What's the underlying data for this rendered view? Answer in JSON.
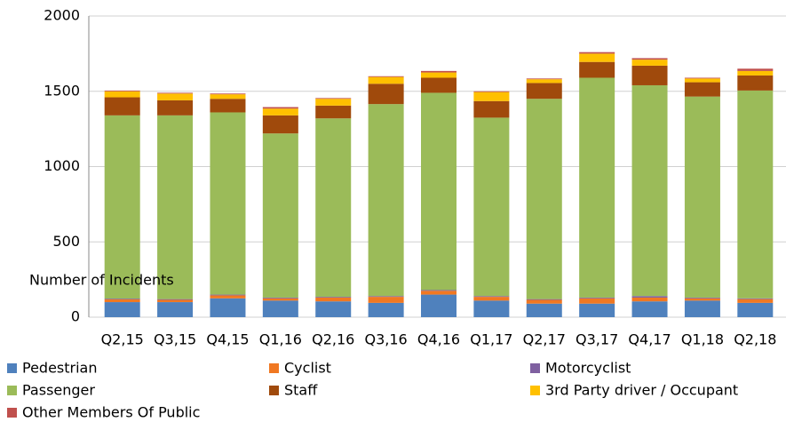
{
  "chart_data": {
    "type": "stacked_bar",
    "y_label": "Number of Incidents",
    "categories": [
      "Q2,15",
      "Q3,15",
      "Q4,15",
      "Q1,16",
      "Q2,16",
      "Q3,16",
      "Q4,16",
      "Q1,17",
      "Q2,17",
      "Q3,17",
      "Q4,17",
      "Q1,18",
      "Q2,18"
    ],
    "series": [
      {
        "name": "Pedestrian",
        "color": "#4f81bd",
        "values": [
          100,
          100,
          125,
          110,
          105,
          95,
          150,
          110,
          90,
          90,
          105,
          110,
          95
        ]
      },
      {
        "name": "Cyclist",
        "color": "#f07822",
        "values": [
          18,
          15,
          20,
          15,
          25,
          40,
          25,
          25,
          25,
          35,
          25,
          15,
          25
        ]
      },
      {
        "name": "Motorcyclist",
        "color": "#7f60a0",
        "values": [
          5,
          5,
          5,
          5,
          5,
          5,
          5,
          5,
          5,
          5,
          10,
          5,
          5
        ]
      },
      {
        "name": "Passenger",
        "color": "#9bbb59",
        "values": [
          1217,
          1220,
          1210,
          1090,
          1185,
          1275,
          1310,
          1185,
          1330,
          1460,
          1400,
          1335,
          1380
        ]
      },
      {
        "name": "Staff",
        "color": "#a04a0c",
        "values": [
          120,
          100,
          90,
          120,
          85,
          135,
          100,
          110,
          105,
          105,
          130,
          95,
          100
        ]
      },
      {
        "name": "3rd Party driver / Occupant",
        "color": "#ffc000",
        "values": [
          40,
          45,
          30,
          45,
          45,
          45,
          35,
          60,
          25,
          55,
          40,
          25,
          30
        ]
      },
      {
        "name": "Other Members Of Public",
        "color": "#c0504d",
        "values": [
          5,
          5,
          5,
          10,
          5,
          5,
          10,
          5,
          5,
          10,
          10,
          5,
          15
        ]
      }
    ],
    "ylim": [
      0,
      2000
    ],
    "yticks": [
      0,
      500,
      1000,
      1500,
      2000
    ],
    "grid": true
  }
}
